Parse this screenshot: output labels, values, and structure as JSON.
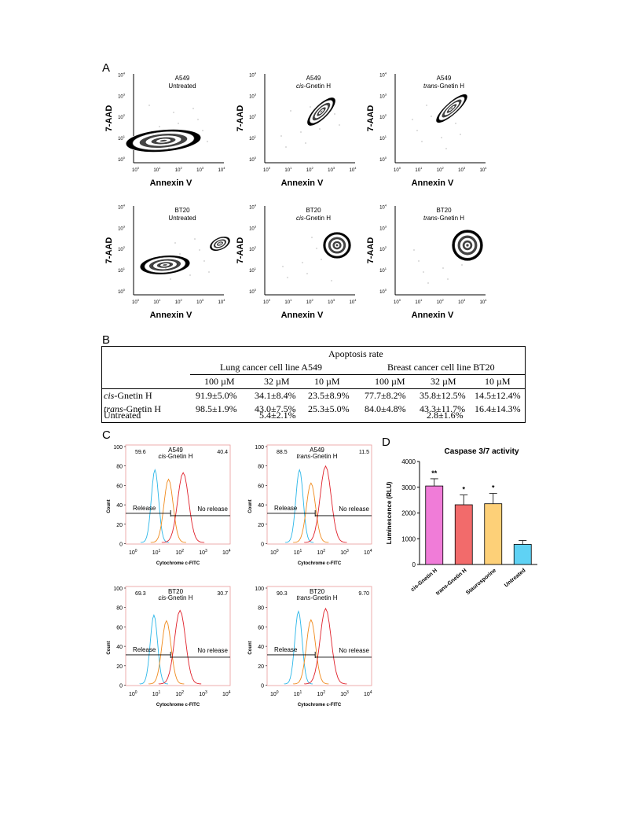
{
  "panelA": {
    "letter": "A",
    "x_label": "Annexin V",
    "y_label": "7-AAD",
    "tick_labels": [
      "10",
      "10",
      "10",
      "10",
      "10"
    ],
    "tick_exponents": [
      "0",
      "1",
      "2",
      "3",
      "4"
    ],
    "plots": [
      {
        "line1": "A549",
        "line2": "Untreated",
        "line2_italic": "",
        "line2_rest": ""
      },
      {
        "line1": "A549",
        "line2": "",
        "line2_italic": "cis",
        "line2_rest": "-Gnetin H"
      },
      {
        "line1": "A549",
        "line2": "",
        "line2_italic": "trans",
        "line2_rest": "-Gnetin H"
      },
      {
        "line1": "BT20",
        "line2": "Untreated",
        "line2_italic": "",
        "line2_rest": ""
      },
      {
        "line1": "BT20",
        "line2": "",
        "line2_italic": "cis",
        "line2_rest": "-Gnetin H"
      },
      {
        "line1": "BT20",
        "line2": "",
        "line2_italic": "trans",
        "line2_rest": "-Gnetin H"
      }
    ]
  },
  "panelB": {
    "letter": "B",
    "title": "Apoptosis rate",
    "group1": "Lung cancer cell line A549",
    "group2": "Breast cancer cell line BT20",
    "concentrations": [
      "100 µM",
      "32 µM",
      "10 µM",
      "100 µM",
      "32 µM",
      "10 µM"
    ],
    "rows": [
      {
        "label_italic": "cis",
        "label_rest": "-Gnetin H",
        "values": [
          "91.9±5.0%",
          "34.1±8.4%",
          "23.5±8.9%",
          "77.7±8.2%",
          "35.8±12.5%",
          "14.5±12.4%"
        ]
      },
      {
        "label_italic": "trans",
        "label_rest": "-Gnetin H",
        "values": [
          "98.5±1.9%",
          "43.0±7.5%",
          "25.3±5.0%",
          "84.0±4.8%",
          "43.3±11.7%",
          "16.4±14.3%"
        ]
      }
    ],
    "untreated_label": "Untreated",
    "untreated_a549": "5.4±2.1%",
    "untreated_bt20": "2.8±1.6%"
  },
  "panelC": {
    "letter": "C",
    "x_label": "Cytochrome c-FITC",
    "y_label": "Count",
    "y_ticks": [
      "100",
      "80",
      "60",
      "40",
      "20",
      "0"
    ],
    "x_tick_base": "10",
    "x_tick_exponents": [
      "0",
      "1",
      "2",
      "3",
      "4"
    ],
    "release_label": "Release",
    "no_release_label": "No release",
    "colors": {
      "blue": "#29b6e8",
      "orange": "#f08a1c",
      "red": "#e0202a",
      "frame": "#e89a9a"
    },
    "plots": [
      {
        "line1": "A549",
        "italic": "cis",
        "rest": "-Gnetin H",
        "left_pct": "59.6",
        "right_pct": "40.4"
      },
      {
        "line1": "A549",
        "italic": "trans",
        "rest": "-Gnetin H",
        "left_pct": "88.5",
        "right_pct": "11.5"
      },
      {
        "line1": "BT20",
        "italic": "cis",
        "rest": "-Gnetin H",
        "left_pct": "69.3",
        "right_pct": "30.7"
      },
      {
        "line1": "BT20",
        "italic": "trans",
        "rest": "-Gnetin H",
        "left_pct": "90.3",
        "right_pct": "9.70"
      }
    ]
  },
  "chart_data": {
    "type": "bar",
    "title": "Caspase 3/7 activity",
    "ylabel": "Luminescence (RLU)",
    "xlabel": "",
    "categories": [
      "cis-Gnetin H",
      "trans-Gnetin H",
      "Staurosporine",
      "Untreated"
    ],
    "values": [
      3050,
      2320,
      2360,
      780
    ],
    "errors": [
      280,
      380,
      400,
      150
    ],
    "significance": [
      "**",
      "*",
      "*",
      ""
    ],
    "colors": [
      "#f07cd8",
      "#f26b6b",
      "#fdd078",
      "#5fd2f4"
    ],
    "ylim": [
      0,
      4000
    ],
    "yticks": [
      "0",
      "1000",
      "2000",
      "3000",
      "4000"
    ],
    "letter": "D"
  }
}
